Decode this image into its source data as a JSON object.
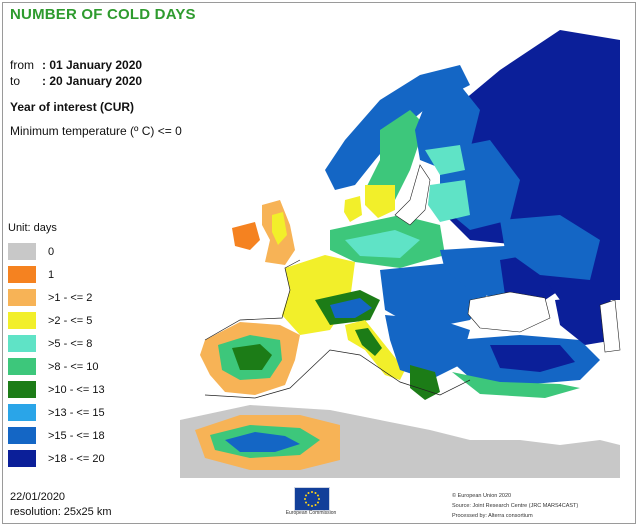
{
  "header": {
    "title": "NUMBER OF COLD DAYS",
    "from_label": "from",
    "from_value": ": 01 January 2020",
    "to_label": "to",
    "to_value": ": 20 January 2020",
    "year_of_interest": "Year of interest (CUR)",
    "threshold": "Minimum temperature (º C) <= 0"
  },
  "legend": {
    "unit": "Unit: days",
    "classes": [
      {
        "label": "0",
        "color": "#c8c8c8"
      },
      {
        "label": "1",
        "color": "#f58220"
      },
      {
        "label": ">1 - <= 2",
        "color": "#f7b356"
      },
      {
        "label": ">2 - <= 5",
        "color": "#f2ef2a"
      },
      {
        "label": ">5 - <= 8",
        "color": "#5fe3c6"
      },
      {
        "label": ">8 - <= 10",
        "color": "#3dc77b"
      },
      {
        "label": ">10 - <= 13",
        "color": "#1c7c17"
      },
      {
        "label": ">13 - <= 15",
        "color": "#2aa5e8"
      },
      {
        "label": ">15 - <= 18",
        "color": "#1466c5"
      },
      {
        "label": ">18 - <= 20",
        "color": "#0b1f99"
      }
    ]
  },
  "footer": {
    "date": "22/01/2020",
    "resolution": "resolution: 25x25 km",
    "eu_caption": "European Commission",
    "credit_1": "© European Union 2020",
    "credit_2": "Source: Joint Research Centre (JRC MARS4CAST)",
    "credit_3": "Processed by: Alterra consortium"
  },
  "map": {
    "sea_color": "#ffffff",
    "border_color": "#222222"
  }
}
